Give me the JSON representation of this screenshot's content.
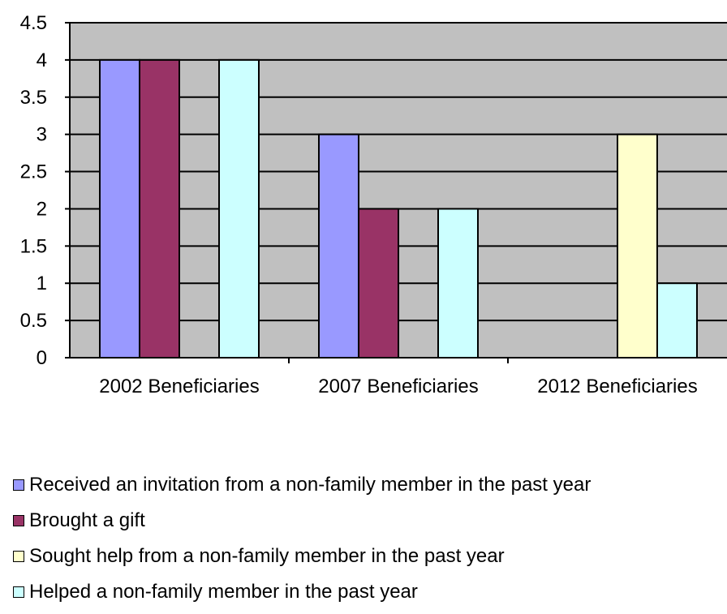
{
  "chart_data": {
    "type": "bar",
    "categories": [
      "2002 Beneficiaries",
      "2007 Beneficiaries",
      "2012 Beneficiaries"
    ],
    "series": [
      {
        "name": "Received an invitation from a non-family member in the past year",
        "color": "#9999ff",
        "values": [
          4,
          3,
          0
        ]
      },
      {
        "name": "Brought a gift",
        "color": "#993366",
        "values": [
          4,
          2,
          0
        ]
      },
      {
        "name": "Sought help from a non-family member in the past year",
        "color": "#ffffcc",
        "values": [
          0,
          0,
          3
        ]
      },
      {
        "name": "Helped a non-family member in the past year",
        "color": "#ccffff",
        "values": [
          4,
          2,
          1
        ]
      }
    ],
    "y_ticks": [
      "0",
      "0.5",
      "1",
      "1.5",
      "2",
      "2.5",
      "3",
      "3.5",
      "4",
      "4.5"
    ],
    "ylim": [
      0,
      4.5
    ],
    "grid": true,
    "plot_background": "#c0c0c0",
    "legend_position": "bottom"
  }
}
